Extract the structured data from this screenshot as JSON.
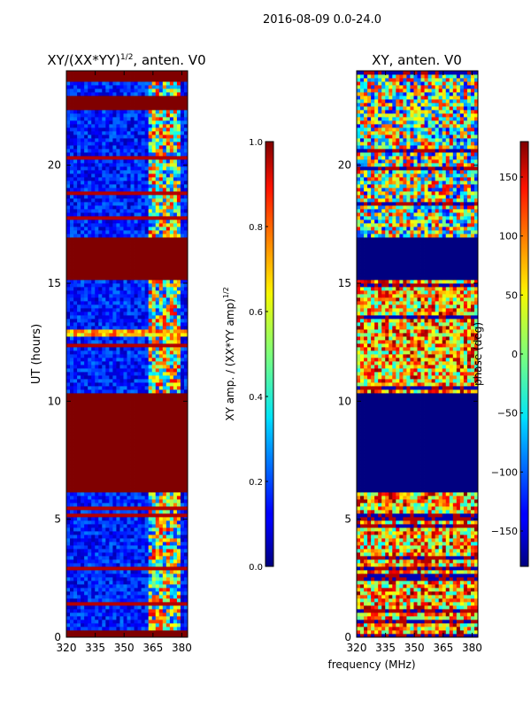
{
  "figure_title": "2016-08-09 0.0-24.0",
  "shared_xlabel": "frequency (MHz)",
  "colors": {
    "dark_red": "#800000",
    "dark_blue": "#00007f",
    "blue": "#0000ff",
    "cyan": "#00ffff",
    "yellow": "#ffff00",
    "red": "#ff0000"
  },
  "chart_data": [
    {
      "type": "heatmap",
      "id": "amp",
      "title_main": "XY/(XX*YY)",
      "title_sup": "1/2",
      "title_tail": ", anten. V0",
      "xlabel": "",
      "ylabel": "UT (hours)",
      "xlim": [
        320,
        383
      ],
      "ylim": [
        0,
        24
      ],
      "xticks": [
        320,
        335,
        350,
        365,
        380
      ],
      "yticks": [
        0,
        5,
        10,
        15,
        20
      ],
      "colorbar": {
        "label_main": "XY amp. / (XX*YY amp)",
        "label_sup": "1/2",
        "range": [
          0.0,
          1.0
        ],
        "ticks": [
          "0.0",
          "0.2",
          "0.4",
          "0.6",
          "0.8",
          "1.0"
        ]
      },
      "flagged_hour_ranges": [
        [
          6.2,
          10.4
        ],
        [
          15.1,
          16.9
        ],
        [
          22.4,
          23.0
        ],
        [
          0.0,
          0.3
        ],
        [
          23.6,
          24.0
        ]
      ],
      "bright_band_hours": [
        12.8,
        13.1
      ],
      "bright_freq_range_MHz": [
        362,
        380
      ]
    },
    {
      "type": "heatmap",
      "id": "phase",
      "title_main": "XY, anten. V0",
      "xlabel": "",
      "ylabel": "",
      "xlim": [
        320,
        383
      ],
      "ylim": [
        0,
        24
      ],
      "xticks": [
        320,
        335,
        350,
        365,
        380
      ],
      "yticks": [
        0,
        5,
        10,
        15,
        20
      ],
      "colorbar": {
        "label_main": "phase (deg)",
        "range": [
          -180,
          180
        ],
        "ticks": [
          "−150",
          "−100",
          "−50",
          "0",
          "50",
          "100",
          "150"
        ]
      },
      "flagged_hour_ranges": [
        [
          6.2,
          10.4
        ],
        [
          15.1,
          16.9
        ]
      ]
    }
  ]
}
